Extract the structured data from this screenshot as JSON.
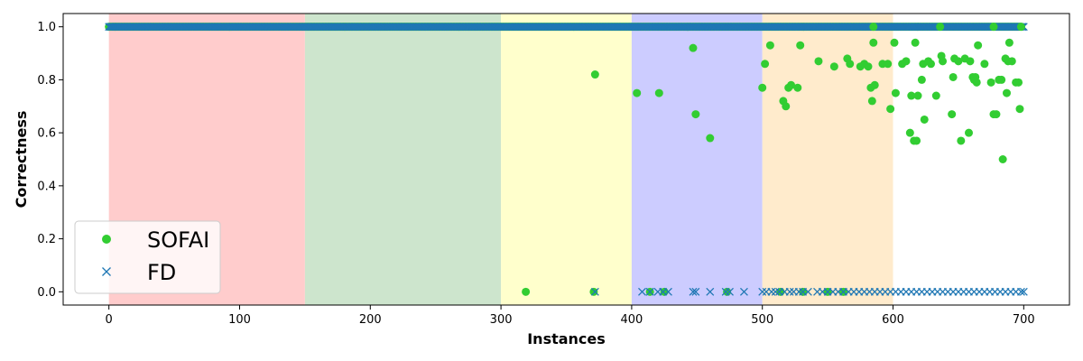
{
  "chart_data": {
    "type": "scatter",
    "xlabel": "Instances",
    "ylabel": "Correctness",
    "xlim": [
      -35,
      735
    ],
    "ylim": [
      -0.05,
      1.05
    ],
    "xticks": [
      "0",
      "100",
      "200",
      "300",
      "400",
      "500",
      "600",
      "700"
    ],
    "yticks": [
      "0.0",
      "0.2",
      "0.4",
      "0.6",
      "0.8",
      "1.0"
    ],
    "grid": false,
    "legend_position": "lower-left",
    "bands": [
      {
        "x": [
          0,
          150
        ],
        "color": "#ffcccc"
      },
      {
        "x": [
          150,
          300
        ],
        "color": "#cde5cd"
      },
      {
        "x": [
          300,
          400
        ],
        "color": "#ffffcc"
      },
      {
        "x": [
          400,
          500
        ],
        "color": "#ccccff"
      },
      {
        "x": [
          500,
          600
        ],
        "color": "#ffebcc"
      }
    ],
    "series": [
      {
        "name": "SOFAI",
        "marker": "circle",
        "color": "#32cd32",
        "baseline": {
          "y": 1.0,
          "x": [
            0,
            698
          ]
        },
        "points": [
          [
            319,
            0.0
          ],
          [
            371,
            0.0
          ],
          [
            372,
            0.82
          ],
          [
            404,
            0.75
          ],
          [
            414,
            0.0
          ],
          [
            421,
            0.75
          ],
          [
            425,
            0.0
          ],
          [
            447,
            0.92
          ],
          [
            449,
            0.67
          ],
          [
            460,
            0.58
          ],
          [
            473,
            0.0
          ],
          [
            500,
            0.77
          ],
          [
            502,
            0.86
          ],
          [
            506,
            0.93
          ],
          [
            514,
            0.0
          ],
          [
            516,
            0.72
          ],
          [
            518,
            0.7
          ],
          [
            520,
            0.77
          ],
          [
            522,
            0.78
          ],
          [
            527,
            0.77
          ],
          [
            529,
            0.93
          ],
          [
            531,
            0.0
          ],
          [
            543,
            0.87
          ],
          [
            550,
            0.0
          ],
          [
            555,
            0.85
          ],
          [
            562,
            0.0
          ],
          [
            565,
            0.88
          ],
          [
            567,
            0.86
          ],
          [
            575,
            0.85
          ],
          [
            578,
            0.86
          ],
          [
            581,
            0.85
          ],
          [
            583,
            0.77
          ],
          [
            584,
            0.72
          ],
          [
            585,
            0.94
          ],
          [
            586,
            0.78
          ],
          [
            592,
            0.86
          ],
          [
            596,
            0.86
          ],
          [
            598,
            0.69
          ],
          [
            601,
            0.94
          ],
          [
            602,
            0.75
          ],
          [
            607,
            0.86
          ],
          [
            610,
            0.87
          ],
          [
            613,
            0.6
          ],
          [
            614,
            0.74
          ],
          [
            616,
            0.57
          ],
          [
            617,
            0.94
          ],
          [
            618,
            0.57
          ],
          [
            619,
            0.74
          ],
          [
            622,
            0.8
          ],
          [
            623,
            0.86
          ],
          [
            624,
            0.65
          ],
          [
            627,
            0.87
          ],
          [
            629,
            0.86
          ],
          [
            633,
            0.74
          ],
          [
            637,
            0.89
          ],
          [
            638,
            0.87
          ],
          [
            645,
            0.67
          ],
          [
            646,
            0.81
          ],
          [
            647,
            0.88
          ],
          [
            650,
            0.87
          ],
          [
            652,
            0.57
          ],
          [
            655,
            0.88
          ],
          [
            658,
            0.6
          ],
          [
            659,
            0.87
          ],
          [
            661,
            0.81
          ],
          [
            662,
            0.8
          ],
          [
            663,
            0.81
          ],
          [
            664,
            0.79
          ],
          [
            665,
            0.93
          ],
          [
            670,
            0.86
          ],
          [
            675,
            0.79
          ],
          [
            677,
            0.67
          ],
          [
            679,
            0.67
          ],
          [
            681,
            0.8
          ],
          [
            683,
            0.8
          ],
          [
            684,
            0.5
          ],
          [
            686,
            0.88
          ],
          [
            687,
            0.75
          ],
          [
            688,
            0.87
          ],
          [
            689,
            0.94
          ],
          [
            691,
            0.87
          ],
          [
            694,
            0.79
          ],
          [
            696,
            0.79
          ],
          [
            697,
            0.69
          ],
          [
            698,
            1.0
          ],
          [
            677,
            1.0
          ],
          [
            636,
            1.0
          ],
          [
            585,
            1.0
          ]
        ]
      },
      {
        "name": "FD",
        "marker": "x",
        "color": "#1f77b4",
        "baseline": {
          "y": 1.0,
          "x": [
            0,
            700
          ]
        },
        "points": [
          [
            372,
            0.0
          ],
          [
            408,
            0.0
          ],
          [
            414,
            0.0
          ],
          [
            420,
            0.0
          ],
          [
            424,
            0.0
          ],
          [
            428,
            0.0
          ],
          [
            447,
            0.0
          ],
          [
            449,
            0.0
          ],
          [
            460,
            0.0
          ],
          [
            472,
            0.0
          ],
          [
            475,
            0.0
          ],
          [
            486,
            0.0
          ],
          [
            500,
            0.0
          ],
          [
            503,
            0.0
          ],
          [
            507,
            0.0
          ],
          [
            510,
            0.0
          ],
          [
            513,
            0.0
          ],
          [
            517,
            0.0
          ],
          [
            521,
            0.0
          ],
          [
            524,
            0.0
          ],
          [
            528,
            0.0
          ],
          [
            531,
            0.0
          ],
          [
            535,
            0.0
          ],
          [
            542,
            0.0
          ],
          [
            546,
            0.0
          ],
          [
            550,
            0.0
          ],
          [
            554,
            0.0
          ],
          [
            558,
            0.0
          ],
          [
            562,
            0.0
          ],
          [
            566,
            0.0
          ],
          [
            570,
            0.0
          ],
          [
            574,
            0.0
          ],
          [
            578,
            0.0
          ],
          [
            582,
            0.0
          ],
          [
            586,
            0.0
          ],
          [
            590,
            0.0
          ],
          [
            594,
            0.0
          ],
          [
            598,
            0.0
          ],
          [
            602,
            0.0
          ],
          [
            606,
            0.0
          ],
          [
            610,
            0.0
          ],
          [
            614,
            0.0
          ],
          [
            618,
            0.0
          ],
          [
            622,
            0.0
          ],
          [
            626,
            0.0
          ],
          [
            630,
            0.0
          ],
          [
            634,
            0.0
          ],
          [
            638,
            0.0
          ],
          [
            642,
            0.0
          ],
          [
            646,
            0.0
          ],
          [
            650,
            0.0
          ],
          [
            654,
            0.0
          ],
          [
            658,
            0.0
          ],
          [
            662,
            0.0
          ],
          [
            666,
            0.0
          ],
          [
            670,
            0.0
          ],
          [
            674,
            0.0
          ],
          [
            678,
            0.0
          ],
          [
            682,
            0.0
          ],
          [
            686,
            0.0
          ],
          [
            690,
            0.0
          ],
          [
            694,
            0.0
          ],
          [
            698,
            0.0
          ],
          [
            700,
            0.0
          ]
        ]
      }
    ]
  }
}
